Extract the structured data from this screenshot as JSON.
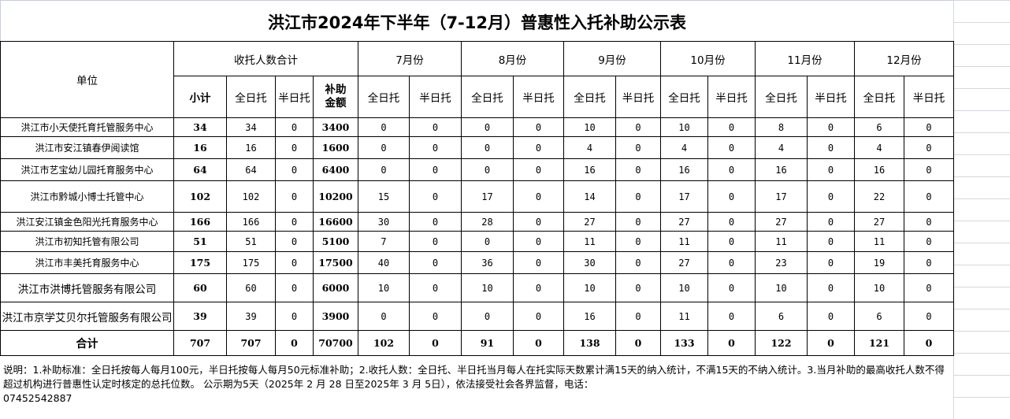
{
  "title": "洪江市2024年下半年（7-12月）普惠性入托补助公示表",
  "headers": {
    "unit": "单位",
    "summary_group": "收托人数合计",
    "subtotal": "小计",
    "full_day": "全日托",
    "half_day": "半日托",
    "subsidy_amount": "补助金额",
    "months": [
      "7月份",
      "8月份",
      "9月份",
      "10月份",
      "11月份",
      "12月份"
    ]
  },
  "rows": [
    {
      "unit": "洪江市小天使托育托管服务中心",
      "subtotal": "34",
      "full": "34",
      "half": "0",
      "amount": "3400",
      "months": [
        [
          "0",
          "0"
        ],
        [
          "0",
          "0"
        ],
        [
          "10",
          "0"
        ],
        [
          "10",
          "0"
        ],
        [
          "8",
          "0"
        ],
        [
          "6",
          "0"
        ]
      ]
    },
    {
      "unit": "洪江市安江镇春伊阅读馆",
      "subtotal": "16",
      "full": "16",
      "half": "0",
      "amount": "1600",
      "months": [
        [
          "0",
          "0"
        ],
        [
          "0",
          "0"
        ],
        [
          "4",
          "0"
        ],
        [
          "4",
          "0"
        ],
        [
          "4",
          "0"
        ],
        [
          "4",
          "0"
        ]
      ]
    },
    {
      "unit": "洪江市艺宝幼儿园托育服务中心",
      "subtotal": "64",
      "full": "64",
      "half": "0",
      "amount": "6400",
      "months": [
        [
          "0",
          "0"
        ],
        [
          "0",
          "0"
        ],
        [
          "16",
          "0"
        ],
        [
          "16",
          "0"
        ],
        [
          "16",
          "0"
        ],
        [
          "16",
          "0"
        ]
      ]
    },
    {
      "unit": "洪江市黔城小博士托管中心",
      "subtotal": "102",
      "full": "102",
      "half": "0",
      "amount": "10200",
      "months": [
        [
          "15",
          "0"
        ],
        [
          "17",
          "0"
        ],
        [
          "14",
          "0"
        ],
        [
          "17",
          "0"
        ],
        [
          "17",
          "0"
        ],
        [
          "22",
          "0"
        ]
      ]
    },
    {
      "unit": "洪江安江镇金色阳光托育服务中心",
      "subtotal": "166",
      "full": "166",
      "half": "0",
      "amount": "16600",
      "months": [
        [
          "30",
          "0"
        ],
        [
          "28",
          "0"
        ],
        [
          "27",
          "0"
        ],
        [
          "27",
          "0"
        ],
        [
          "27",
          "0"
        ],
        [
          "27",
          "0"
        ]
      ]
    },
    {
      "unit": "洪江市初知托管有限公司",
      "subtotal": "51",
      "full": "51",
      "half": "0",
      "amount": "5100",
      "months": [
        [
          "7",
          "0"
        ],
        [
          "0",
          "0"
        ],
        [
          "11",
          "0"
        ],
        [
          "11",
          "0"
        ],
        [
          "11",
          "0"
        ],
        [
          "11",
          "0"
        ]
      ]
    },
    {
      "unit": "洪江市丰美托育服务中心",
      "subtotal": "175",
      "full": "175",
      "half": "0",
      "amount": "17500",
      "months": [
        [
          "40",
          "0"
        ],
        [
          "36",
          "0"
        ],
        [
          "30",
          "0"
        ],
        [
          "27",
          "0"
        ],
        [
          "23",
          "0"
        ],
        [
          "19",
          "0"
        ]
      ]
    },
    {
      "unit": "洪江市洪博托管服务有限公司",
      "subtotal": "60",
      "full": "60",
      "half": "0",
      "amount": "6000",
      "months": [
        [
          "10",
          "0"
        ],
        [
          "10",
          "0"
        ],
        [
          "10",
          "0"
        ],
        [
          "10",
          "0"
        ],
        [
          "10",
          "0"
        ],
        [
          "10",
          "0"
        ]
      ]
    },
    {
      "unit": "洪江市京学艾贝尔托管服务有限公司",
      "subtotal": "39",
      "full": "39",
      "half": "0",
      "amount": "3900",
      "months": [
        [
          "0",
          "0"
        ],
        [
          "0",
          "0"
        ],
        [
          "16",
          "0"
        ],
        [
          "11",
          "0"
        ],
        [
          "6",
          "0"
        ],
        [
          "6",
          "0"
        ]
      ]
    }
  ],
  "total": {
    "label": "合计",
    "subtotal": "707",
    "full": "707",
    "half": "0",
    "amount": "70700",
    "months": [
      [
        "102",
        "0"
      ],
      [
        "91",
        "0"
      ],
      [
        "138",
        "0"
      ],
      [
        "133",
        "0"
      ],
      [
        "122",
        "0"
      ],
      [
        "121",
        "0"
      ]
    ]
  },
  "footer": {
    "note": "说明：1.补助标准：全日托按每人每月100元，半日托按每人每月50元标准补助；2.收托人数：全日托、半日托当月每人在托实际天数累计满15天的纳入统计，不满15天的不纳入统计。3.当月补助的最高收托人数不得超过机构进行普惠性认定时核定的总托位数。 公示期为5天（2025年  2 月  28 日至2025年 3 月  5日），依法接受社会各界监督，电话：",
    "phone": "07452542887"
  }
}
